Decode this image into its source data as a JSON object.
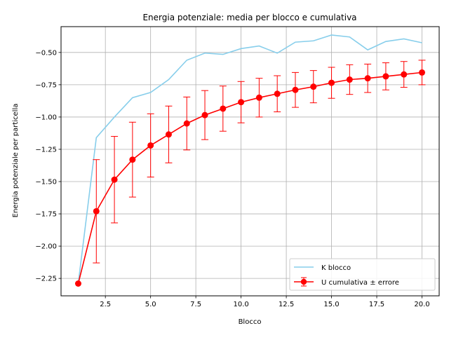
{
  "chart_data": {
    "type": "line",
    "title": "Energia potenziale: media per blocco e cumulativa",
    "xlabel": "Blocco",
    "ylabel": "Energia potenziale per particella",
    "xlim": [
      0.05,
      20.95
    ],
    "ylim": [
      -2.385,
      -0.3
    ],
    "xticks": [
      2.5,
      5.0,
      7.5,
      10.0,
      12.5,
      15.0,
      17.5,
      20.0
    ],
    "xtick_labels": [
      "2.5",
      "5.0",
      "7.5",
      "10.0",
      "12.5",
      "15.0",
      "17.5",
      "20.0"
    ],
    "yticks": [
      -2.25,
      -2.0,
      -1.75,
      -1.5,
      -1.25,
      -1.0,
      -0.75,
      -0.5
    ],
    "ytick_labels": [
      "−2.25",
      "−2.00",
      "−1.75",
      "−1.50",
      "−1.25",
      "−1.00",
      "−0.75",
      "−0.50"
    ],
    "grid": true,
    "legend_position": "bottom-right",
    "x": [
      1,
      2,
      3,
      4,
      5,
      6,
      7,
      8,
      9,
      10,
      11,
      12,
      13,
      14,
      15,
      16,
      17,
      18,
      19,
      20
    ],
    "series": [
      {
        "name": "K blocco",
        "color": "#87ceeb",
        "marker": "none",
        "values": [
          -2.29,
          -1.16,
          -1.0,
          -0.85,
          -0.81,
          -0.71,
          -0.56,
          -0.505,
          -0.515,
          -0.47,
          -0.45,
          -0.505,
          -0.42,
          -0.41,
          -0.365,
          -0.38,
          -0.48,
          -0.415,
          -0.395,
          -0.425
        ]
      },
      {
        "name": "U cumulativa ± errore",
        "color": "#ff0000",
        "marker": "circle",
        "values": [
          -2.29,
          -1.73,
          -1.485,
          -1.33,
          -1.22,
          -1.135,
          -1.05,
          -0.985,
          -0.935,
          -0.885,
          -0.85,
          -0.82,
          -0.79,
          -0.765,
          -0.735,
          -0.71,
          -0.7,
          -0.685,
          -0.67,
          -0.655
        ],
        "errors": [
          0.0,
          0.4,
          0.335,
          0.29,
          0.245,
          0.22,
          0.205,
          0.19,
          0.175,
          0.16,
          0.15,
          0.14,
          0.135,
          0.125,
          0.12,
          0.115,
          0.11,
          0.105,
          0.1,
          0.095
        ]
      }
    ]
  }
}
